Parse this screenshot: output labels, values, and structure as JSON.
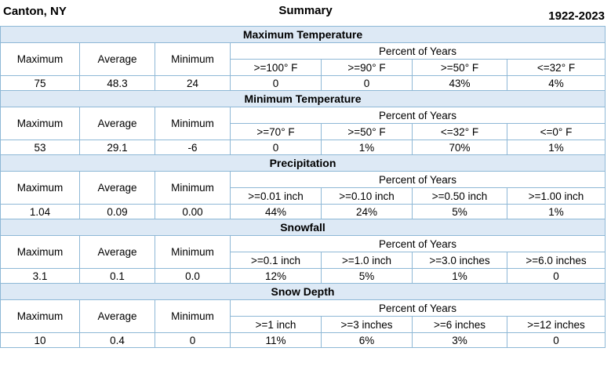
{
  "header": {
    "location": "Canton, NY",
    "title": "Summary",
    "years": "1922-2023"
  },
  "labels": {
    "maximum": "Maximum",
    "average": "Average",
    "minimum": "Minimum",
    "percent": "Percent of Years"
  },
  "sections": [
    {
      "title": "Maximum Temperature",
      "thresholds": [
        ">=100° F",
        ">=90° F",
        ">=50° F",
        "<=32° F"
      ],
      "max": "75",
      "avg": "48.3",
      "min": "24",
      "pct": [
        "0",
        "0",
        "43%",
        "4%"
      ]
    },
    {
      "title": "Minimum Temperature",
      "thresholds": [
        ">=70° F",
        ">=50° F",
        "<=32° F",
        "<=0° F"
      ],
      "max": "53",
      "avg": "29.1",
      "min": "-6",
      "pct": [
        "0",
        "1%",
        "70%",
        "1%"
      ]
    },
    {
      "title": "Precipitation",
      "thresholds": [
        ">=0.01 inch",
        ">=0.10 inch",
        ">=0.50 inch",
        ">=1.00 inch"
      ],
      "max": "1.04",
      "avg": "0.09",
      "min": "0.00",
      "pct": [
        "44%",
        "24%",
        "5%",
        "1%"
      ]
    },
    {
      "title": "Snowfall",
      "thresholds": [
        ">=0.1 inch",
        ">=1.0 inch",
        ">=3.0 inches",
        ">=6.0 inches"
      ],
      "max": "3.1",
      "avg": "0.1",
      "min": "0.0",
      "pct": [
        "12%",
        "5%",
        "1%",
        "0"
      ]
    },
    {
      "title": "Snow Depth",
      "thresholds": [
        ">=1 inch",
        ">=3 inches",
        ">=6 inches",
        ">=12 inches"
      ],
      "max": "10",
      "avg": "0.4",
      "min": "0",
      "pct": [
        "11%",
        "6%",
        "3%",
        "0"
      ]
    }
  ]
}
